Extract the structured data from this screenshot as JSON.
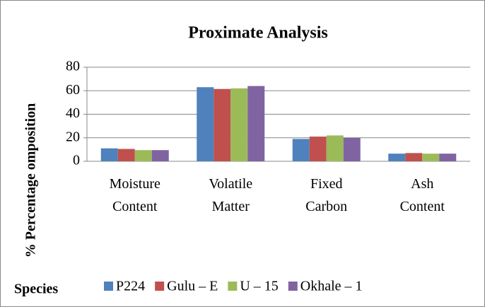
{
  "chart_data": {
    "type": "bar",
    "title": "Proximate Analysis",
    "y_label": "% Percentage omposition",
    "legend_title": "Species",
    "categories": [
      "Moisture Content",
      "Volatile Matter",
      "Fixed Carbon",
      "Ash Content"
    ],
    "series": [
      {
        "name": "P224",
        "color": "#4f81bd",
        "values": [
          11,
          63,
          19,
          6.5
        ]
      },
      {
        "name": "Gulu – E",
        "color": "#c0504d",
        "values": [
          10.5,
          61.5,
          21,
          7
        ]
      },
      {
        "name": "U – 15",
        "color": "#9bbb59",
        "values": [
          9.5,
          62,
          22,
          6.5
        ]
      },
      {
        "name": "Okhale – 1",
        "color": "#8064a2",
        "values": [
          9.5,
          64,
          20,
          6.5
        ]
      }
    ],
    "ylim": [
      0,
      80
    ],
    "yticks": [
      0,
      20,
      40,
      60,
      80
    ],
    "grid": true,
    "legend": "bottom"
  }
}
